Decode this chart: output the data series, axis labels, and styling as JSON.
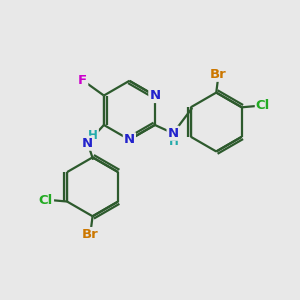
{
  "bg_color": "#e8e8e8",
  "bond_color": "#2d5a2d",
  "bond_width": 1.6,
  "atom_colors": {
    "C": "#2d5a2d",
    "N": "#2222cc",
    "F": "#cc00cc",
    "Cl": "#22aa22",
    "Br": "#cc7700",
    "H": "#22aaaa"
  },
  "font_size": 9.5,
  "fig_size": [
    3.0,
    3.0
  ],
  "dpi": 100
}
